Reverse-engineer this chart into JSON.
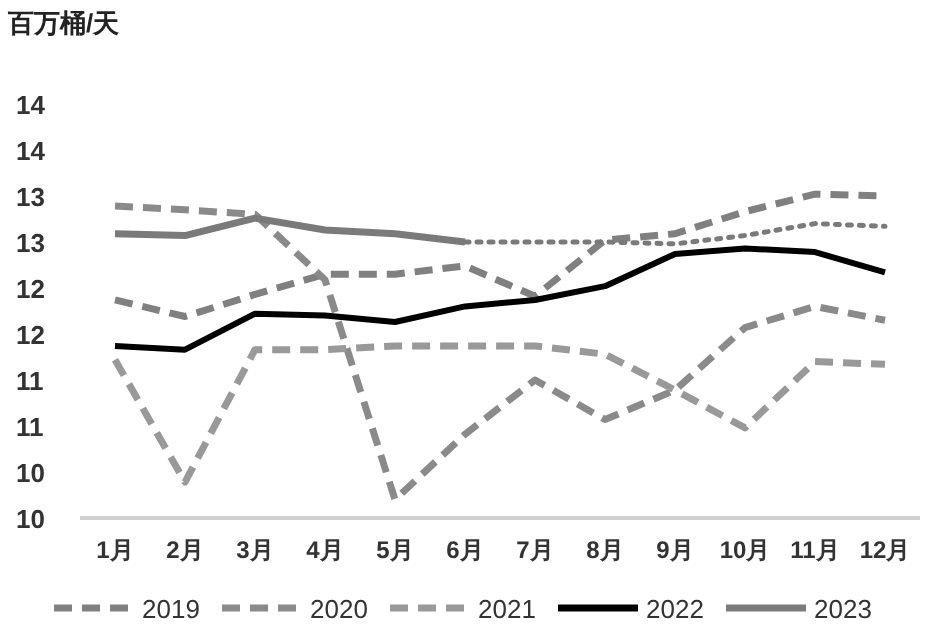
{
  "chart_data": {
    "type": "line",
    "ylabel": "百万桶/天",
    "categories": [
      "1月",
      "2月",
      "3月",
      "4月",
      "5月",
      "6月",
      "7月",
      "8月",
      "9月",
      "10月",
      "11月",
      "12月"
    ],
    "ylim": [
      9.8,
      14.3
    ],
    "yticks": [
      {
        "value": 9.8,
        "label": "10"
      },
      {
        "value": 10.3,
        "label": "10"
      },
      {
        "value": 10.8,
        "label": "11"
      },
      {
        "value": 11.3,
        "label": "11"
      },
      {
        "value": 11.8,
        "label": "12"
      },
      {
        "value": 12.3,
        "label": "12"
      },
      {
        "value": 12.8,
        "label": "13"
      },
      {
        "value": 13.3,
        "label": "13"
      },
      {
        "value": 13.8,
        "label": "14"
      },
      {
        "value": 14.3,
        "label": "14"
      }
    ],
    "grid": false,
    "legend": "bottom",
    "marker": "none",
    "series": [
      {
        "name": "2019",
        "color": "#808080",
        "line_style": "dashed",
        "values": [
          12.17,
          11.99,
          12.23,
          12.45,
          12.45,
          12.54,
          12.21,
          12.82,
          12.89,
          13.13,
          13.32,
          13.3
        ]
      },
      {
        "name": "2020",
        "color": "#8a8a8a",
        "line_style": "dashed",
        "values": [
          13.19,
          13.15,
          13.1,
          12.39,
          10.0,
          10.71,
          11.3,
          10.87,
          11.19,
          11.87,
          12.1,
          11.95
        ]
      },
      {
        "name": "2021",
        "color": "#999999",
        "line_style": "dashed",
        "values": [
          11.52,
          10.19,
          11.63,
          11.63,
          11.67,
          11.67,
          11.67,
          11.58,
          11.19,
          10.78,
          11.5,
          11.47
        ]
      },
      {
        "name": "2022",
        "color": "#000000",
        "line_style": "solid",
        "values": [
          11.67,
          11.63,
          12.02,
          12.0,
          11.93,
          12.1,
          12.17,
          12.32,
          12.67,
          12.73,
          12.69,
          12.47
        ]
      },
      {
        "name": "2023",
        "color": "#7a7a7a",
        "line_style": "solid",
        "values": [
          12.89,
          12.87,
          13.06,
          12.93,
          12.89,
          12.8,
          null,
          null,
          null,
          null,
          null,
          null
        ]
      },
      {
        "color": "#7a7a7a",
        "line_style": "dotted",
        "values": [
          null,
          null,
          null,
          null,
          null,
          12.8,
          12.8,
          12.8,
          12.78,
          12.87,
          13.0,
          12.97
        ]
      }
    ]
  }
}
